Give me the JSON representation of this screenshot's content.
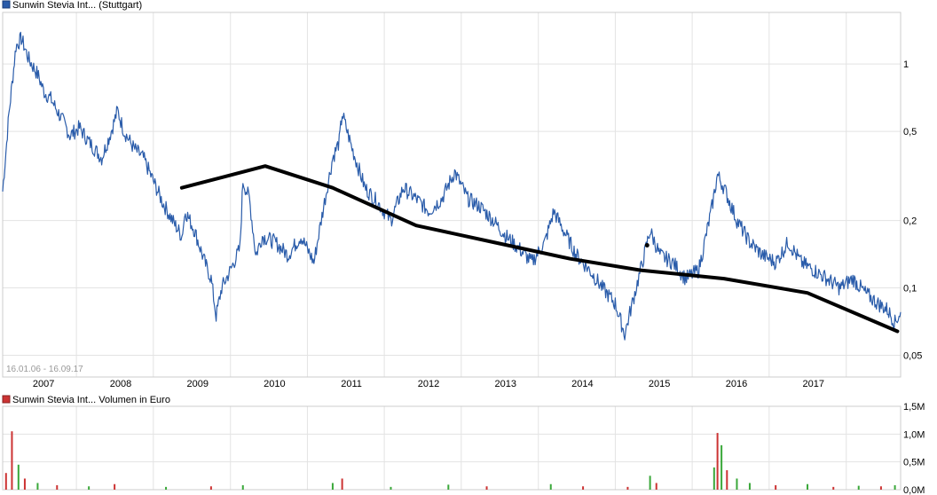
{
  "chart_data": [
    {
      "type": "line",
      "legend": "Sunwin Stevia Int... (Stuttgart)",
      "date_range_label": "16.01.06 - 16.09.17",
      "y_scale": "log",
      "ylim": [
        0.04,
        1.7
      ],
      "xlim": [
        "2006-01-16",
        "2017-09-16"
      ],
      "y_ticks": [
        {
          "value": 1,
          "label": "1"
        },
        {
          "value": 0.5,
          "label": "0,5"
        },
        {
          "value": 0.2,
          "label": "0,2"
        },
        {
          "value": 0.1,
          "label": "0,1"
        },
        {
          "value": 0.05,
          "label": "0,05"
        }
      ],
      "x_ticks": [
        "2007",
        "2008",
        "2009",
        "2010",
        "2011",
        "2012",
        "2013",
        "2014",
        "2015",
        "2016",
        "2017"
      ],
      "grid": true,
      "series": [
        {
          "name": "Sunwin Stevia Int... (Stuttgart)",
          "color": "#2a5caa",
          "points": [
            [
              "2006-01-16",
              0.27
            ],
            [
              "2006-02-15",
              0.6
            ],
            [
              "2006-03-20",
              1.2
            ],
            [
              "2006-04-15",
              1.3
            ],
            [
              "2006-05-20",
              1.05
            ],
            [
              "2006-07-01",
              0.9
            ],
            [
              "2006-08-01",
              0.75
            ],
            [
              "2006-09-01",
              0.7
            ],
            [
              "2006-10-01",
              0.62
            ],
            [
              "2006-11-01",
              0.55
            ],
            [
              "2006-12-01",
              0.48
            ],
            [
              "2007-01-15",
              0.52
            ],
            [
              "2007-03-01",
              0.45
            ],
            [
              "2007-05-01",
              0.38
            ],
            [
              "2007-06-15",
              0.5
            ],
            [
              "2007-07-15",
              0.62
            ],
            [
              "2007-08-15",
              0.5
            ],
            [
              "2007-10-01",
              0.42
            ],
            [
              "2007-11-15",
              0.38
            ],
            [
              "2008-01-01",
              0.3
            ],
            [
              "2008-02-15",
              0.24
            ],
            [
              "2008-04-01",
              0.2
            ],
            [
              "2008-05-15",
              0.17
            ],
            [
              "2008-06-01",
              0.22
            ],
            [
              "2008-07-15",
              0.18
            ],
            [
              "2008-09-01",
              0.13
            ],
            [
              "2008-10-01",
              0.11
            ],
            [
              "2008-10-25",
              0.075
            ],
            [
              "2008-11-20",
              0.1
            ],
            [
              "2009-01-01",
              0.12
            ],
            [
              "2009-02-15",
              0.15
            ],
            [
              "2009-03-01",
              0.3
            ],
            [
              "2009-04-01",
              0.25
            ],
            [
              "2009-05-01",
              0.14
            ],
            [
              "2009-06-01",
              0.17
            ],
            [
              "2009-08-01",
              0.16
            ],
            [
              "2009-10-01",
              0.14
            ],
            [
              "2009-12-01",
              0.17
            ],
            [
              "2010-02-01",
              0.13
            ],
            [
              "2010-03-15",
              0.22
            ],
            [
              "2010-05-01",
              0.38
            ],
            [
              "2010-06-01",
              0.45
            ],
            [
              "2010-06-15",
              0.6
            ],
            [
              "2010-08-01",
              0.42
            ],
            [
              "2010-10-01",
              0.28
            ],
            [
              "2010-12-01",
              0.24
            ],
            [
              "2011-02-01",
              0.2
            ],
            [
              "2011-04-01",
              0.28
            ],
            [
              "2011-06-01",
              0.25
            ],
            [
              "2011-08-01",
              0.22
            ],
            [
              "2011-10-01",
              0.25
            ],
            [
              "2011-12-01",
              0.33
            ],
            [
              "2012-02-01",
              0.25
            ],
            [
              "2012-04-01",
              0.23
            ],
            [
              "2012-06-01",
              0.2
            ],
            [
              "2012-08-01",
              0.17
            ],
            [
              "2012-10-01",
              0.15
            ],
            [
              "2012-12-01",
              0.13
            ],
            [
              "2013-02-01",
              0.16
            ],
            [
              "2013-03-15",
              0.22
            ],
            [
              "2013-05-01",
              0.18
            ],
            [
              "2013-07-01",
              0.14
            ],
            [
              "2013-09-01",
              0.12
            ],
            [
              "2013-11-01",
              0.1
            ],
            [
              "2014-01-01",
              0.085
            ],
            [
              "2014-02-15",
              0.062
            ],
            [
              "2014-03-15",
              0.08
            ],
            [
              "2014-05-01",
              0.12
            ],
            [
              "2014-06-15",
              0.18
            ],
            [
              "2014-08-01",
              0.14
            ],
            [
              "2014-10-01",
              0.13
            ],
            [
              "2014-12-01",
              0.11
            ],
            [
              "2015-02-01",
              0.12
            ],
            [
              "2015-04-01",
              0.22
            ],
            [
              "2015-05-01",
              0.32
            ],
            [
              "2015-06-01",
              0.28
            ],
            [
              "2015-08-01",
              0.2
            ],
            [
              "2015-10-01",
              0.16
            ],
            [
              "2015-12-01",
              0.14
            ],
            [
              "2016-02-01",
              0.13
            ],
            [
              "2016-04-01",
              0.16
            ],
            [
              "2016-06-01",
              0.13
            ],
            [
              "2016-08-01",
              0.12
            ],
            [
              "2016-10-01",
              0.11
            ],
            [
              "2016-12-01",
              0.1
            ],
            [
              "2017-02-01",
              0.11
            ],
            [
              "2017-04-01",
              0.095
            ],
            [
              "2017-06-01",
              0.085
            ],
            [
              "2017-07-15",
              0.08
            ],
            [
              "2017-08-20",
              0.07
            ],
            [
              "2017-09-16",
              0.078
            ]
          ]
        },
        {
          "name": "hand-drawn trend",
          "color": "#000000",
          "points": [
            [
              "2008-05-15",
              0.28
            ],
            [
              "2009-06-15",
              0.35
            ],
            [
              "2010-05-01",
              0.28
            ],
            [
              "2011-06-01",
              0.19
            ],
            [
              "2012-06-01",
              0.16
            ],
            [
              "2013-06-01",
              0.135
            ],
            [
              "2014-05-01",
              0.12
            ],
            [
              "2015-06-01",
              0.11
            ],
            [
              "2016-07-01",
              0.095
            ],
            [
              "2017-09-01",
              0.064
            ]
          ],
          "dots": [
            [
              "2014-06-01",
              0.155
            ]
          ]
        }
      ]
    },
    {
      "type": "bar",
      "legend": "Sunwin Stevia Int... Volumen in Euro",
      "ylim": [
        0,
        1.5
      ],
      "y_unit": "Mio. Euro",
      "y_ticks": [
        {
          "value": 1.5,
          "label": "1,5M"
        },
        {
          "value": 1.0,
          "label": "1,0M"
        },
        {
          "value": 0.5,
          "label": "0,5M"
        },
        {
          "value": 0.0,
          "label": "0,0M"
        }
      ],
      "colors": {
        "up": "#3aa83a",
        "down": "#cc3333"
      },
      "bars": [
        {
          "x": "2006-02-01",
          "value": 0.3,
          "dir": "down"
        },
        {
          "x": "2006-03-01",
          "value": 1.05,
          "dir": "down"
        },
        {
          "x": "2006-04-01",
          "value": 0.45,
          "dir": "up"
        },
        {
          "x": "2006-05-01",
          "value": 0.2,
          "dir": "down"
        },
        {
          "x": "2006-07-01",
          "value": 0.12,
          "dir": "up"
        },
        {
          "x": "2006-10-01",
          "value": 0.08,
          "dir": "down"
        },
        {
          "x": "2007-03-01",
          "value": 0.06,
          "dir": "up"
        },
        {
          "x": "2007-07-01",
          "value": 0.1,
          "dir": "down"
        },
        {
          "x": "2008-03-01",
          "value": 0.05,
          "dir": "up"
        },
        {
          "x": "2008-10-01",
          "value": 0.06,
          "dir": "down"
        },
        {
          "x": "2009-03-01",
          "value": 0.08,
          "dir": "up"
        },
        {
          "x": "2010-05-01",
          "value": 0.12,
          "dir": "up"
        },
        {
          "x": "2010-06-15",
          "value": 0.2,
          "dir": "down"
        },
        {
          "x": "2011-02-01",
          "value": 0.05,
          "dir": "up"
        },
        {
          "x": "2011-11-01",
          "value": 0.09,
          "dir": "up"
        },
        {
          "x": "2012-05-01",
          "value": 0.06,
          "dir": "down"
        },
        {
          "x": "2013-03-01",
          "value": 0.1,
          "dir": "up"
        },
        {
          "x": "2013-08-01",
          "value": 0.06,
          "dir": "down"
        },
        {
          "x": "2014-03-01",
          "value": 0.05,
          "dir": "down"
        },
        {
          "x": "2014-06-15",
          "value": 0.25,
          "dir": "up"
        },
        {
          "x": "2014-07-15",
          "value": 0.12,
          "dir": "down"
        },
        {
          "x": "2015-04-15",
          "value": 0.4,
          "dir": "up"
        },
        {
          "x": "2015-05-01",
          "value": 1.02,
          "dir": "down"
        },
        {
          "x": "2015-05-20",
          "value": 0.8,
          "dir": "up"
        },
        {
          "x": "2015-06-15",
          "value": 0.35,
          "dir": "down"
        },
        {
          "x": "2015-08-01",
          "value": 0.2,
          "dir": "up"
        },
        {
          "x": "2015-10-01",
          "value": 0.12,
          "dir": "up"
        },
        {
          "x": "2016-02-01",
          "value": 0.08,
          "dir": "down"
        },
        {
          "x": "2016-07-01",
          "value": 0.1,
          "dir": "up"
        },
        {
          "x": "2016-11-01",
          "value": 0.05,
          "dir": "down"
        },
        {
          "x": "2017-03-01",
          "value": 0.07,
          "dir": "up"
        },
        {
          "x": "2017-06-15",
          "value": 0.06,
          "dir": "down"
        },
        {
          "x": "2017-08-20",
          "value": 0.08,
          "dir": "up"
        }
      ]
    }
  ]
}
